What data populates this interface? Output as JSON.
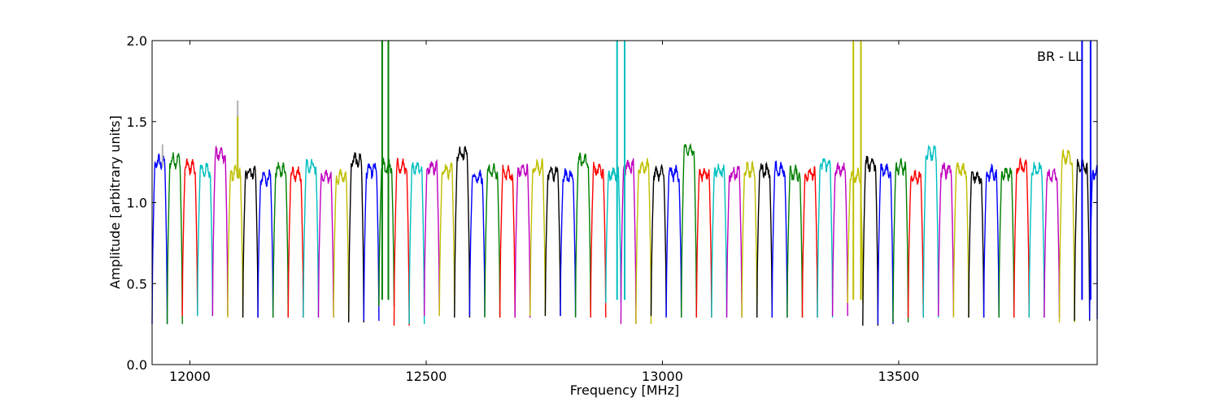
{
  "chart_data": {
    "type": "line",
    "title": "",
    "annotation": "BR - LL",
    "xlabel": "Frequency [MHz]",
    "ylabel": "Amplitude [arbitrary units]",
    "xlim": [
      11920,
      13920
    ],
    "ylim": [
      0.0,
      2.0
    ],
    "xticks": [
      12000,
      12500,
      13000,
      13500
    ],
    "xtick_labels": [
      "12000",
      "12500",
      "13000",
      "13500"
    ],
    "yticks": [
      0.0,
      0.5,
      1.0,
      1.5,
      2.0
    ],
    "ytick_labels": [
      "0.0",
      "0.5",
      "1.0",
      "1.5",
      "2.0"
    ],
    "grid": false,
    "color_cycle": [
      "#0000ff",
      "#008000",
      "#ff0000",
      "#00bfbf",
      "#bf00bf",
      "#bfbf00",
      "#000000"
    ],
    "spike_color": "#b0b0b0",
    "channel_width_mhz": 32,
    "channel_start_mhz": 11920,
    "channel_count": 63,
    "channels": [
      {
        "start": 11920,
        "color": "#0000ff",
        "level": 1.25,
        "min": 0.25
      },
      {
        "start": 11952,
        "color": "#008000",
        "level": 1.26,
        "min": 0.25
      },
      {
        "start": 11984,
        "color": "#ff0000",
        "level": 1.22,
        "min": 0.3
      },
      {
        "start": 12016,
        "color": "#00bfbf",
        "level": 1.2,
        "min": 0.3
      },
      {
        "start": 12048,
        "color": "#bf00bf",
        "level": 1.3,
        "min": 0.3
      },
      {
        "start": 12080,
        "color": "#bfbf00",
        "level": 1.18,
        "min": 0.29
      },
      {
        "start": 12112,
        "color": "#000000",
        "level": 1.19,
        "min": 0.29
      },
      {
        "start": 12144,
        "color": "#0000ff",
        "level": 1.15,
        "min": 0.29
      },
      {
        "start": 12176,
        "color": "#008000",
        "level": 1.2,
        "min": 0.29
      },
      {
        "start": 12208,
        "color": "#ff0000",
        "level": 1.18,
        "min": 0.29
      },
      {
        "start": 12240,
        "color": "#00bfbf",
        "level": 1.22,
        "min": 0.29
      },
      {
        "start": 12272,
        "color": "#bf00bf",
        "level": 1.16,
        "min": 0.29
      },
      {
        "start": 12304,
        "color": "#bfbf00",
        "level": 1.16,
        "min": 0.29
      },
      {
        "start": 12336,
        "color": "#000000",
        "level": 1.26,
        "min": 0.26
      },
      {
        "start": 12368,
        "color": "#0000ff",
        "level": 1.2,
        "min": 0.27
      },
      {
        "start": 12400,
        "color": "#008000",
        "level": 1.22,
        "min": 0.36
      },
      {
        "start": 12432,
        "color": "#ff0000",
        "level": 1.22,
        "min": 0.24
      },
      {
        "start": 12464,
        "color": "#00bfbf",
        "level": 1.22,
        "min": 0.25
      },
      {
        "start": 12496,
        "color": "#bf00bf",
        "level": 1.22,
        "min": 0.3
      },
      {
        "start": 12528,
        "color": "#bfbf00",
        "level": 1.2,
        "min": 0.3
      },
      {
        "start": 12560,
        "color": "#000000",
        "level": 1.3,
        "min": 0.29
      },
      {
        "start": 12592,
        "color": "#0000ff",
        "level": 1.16,
        "min": 0.3
      },
      {
        "start": 12624,
        "color": "#008000",
        "level": 1.19,
        "min": 0.29
      },
      {
        "start": 12656,
        "color": "#ff0000",
        "level": 1.18,
        "min": 0.29
      },
      {
        "start": 12688,
        "color": "#bf00bf",
        "level": 1.2,
        "min": 0.29
      },
      {
        "start": 12720,
        "color": "#bfbf00",
        "level": 1.22,
        "min": 0.3
      },
      {
        "start": 12752,
        "color": "#000000",
        "level": 1.18,
        "min": 0.3
      },
      {
        "start": 12784,
        "color": "#0000ff",
        "level": 1.16,
        "min": 0.3
      },
      {
        "start": 12816,
        "color": "#008000",
        "level": 1.26,
        "min": 0.29
      },
      {
        "start": 12848,
        "color": "#ff0000",
        "level": 1.2,
        "min": 0.29
      },
      {
        "start": 12880,
        "color": "#00bfbf",
        "level": 1.18,
        "min": 0.38
      },
      {
        "start": 12912,
        "color": "#bf00bf",
        "level": 1.22,
        "min": 0.25
      },
      {
        "start": 12944,
        "color": "#bfbf00",
        "level": 1.22,
        "min": 0.25
      },
      {
        "start": 12976,
        "color": "#000000",
        "level": 1.18,
        "min": 0.3
      },
      {
        "start": 13008,
        "color": "#0000ff",
        "level": 1.18,
        "min": 0.29
      },
      {
        "start": 13040,
        "color": "#008000",
        "level": 1.32,
        "min": 0.29
      },
      {
        "start": 13072,
        "color": "#ff0000",
        "level": 1.18,
        "min": 0.29
      },
      {
        "start": 13104,
        "color": "#00bfbf",
        "level": 1.2,
        "min": 0.29
      },
      {
        "start": 13136,
        "color": "#bf00bf",
        "level": 1.18,
        "min": 0.29
      },
      {
        "start": 13168,
        "color": "#bfbf00",
        "level": 1.2,
        "min": 0.29
      },
      {
        "start": 13200,
        "color": "#000000",
        "level": 1.2,
        "min": 0.29
      },
      {
        "start": 13232,
        "color": "#0000ff",
        "level": 1.2,
        "min": 0.29
      },
      {
        "start": 13264,
        "color": "#008000",
        "level": 1.18,
        "min": 0.29
      },
      {
        "start": 13296,
        "color": "#ff0000",
        "level": 1.18,
        "min": 0.29
      },
      {
        "start": 13328,
        "color": "#00bfbf",
        "level": 1.24,
        "min": 0.29
      },
      {
        "start": 13360,
        "color": "#bf00bf",
        "level": 1.2,
        "min": 0.3
      },
      {
        "start": 13392,
        "color": "#bfbf00",
        "level": 1.16,
        "min": 0.38
      },
      {
        "start": 13424,
        "color": "#000000",
        "level": 1.24,
        "min": 0.24
      },
      {
        "start": 13456,
        "color": "#0000ff",
        "level": 1.2,
        "min": 0.25
      },
      {
        "start": 13488,
        "color": "#008000",
        "level": 1.22,
        "min": 0.26
      },
      {
        "start": 13520,
        "color": "#ff0000",
        "level": 1.16,
        "min": 0.29
      },
      {
        "start": 13552,
        "color": "#00bfbf",
        "level": 1.3,
        "min": 0.29
      },
      {
        "start": 13584,
        "color": "#bf00bf",
        "level": 1.2,
        "min": 0.3
      },
      {
        "start": 13616,
        "color": "#bfbf00",
        "level": 1.2,
        "min": 0.29
      },
      {
        "start": 13648,
        "color": "#000000",
        "level": 1.16,
        "min": 0.29
      },
      {
        "start": 13680,
        "color": "#0000ff",
        "level": 1.18,
        "min": 0.29
      },
      {
        "start": 13712,
        "color": "#008000",
        "level": 1.18,
        "min": 0.29
      },
      {
        "start": 13744,
        "color": "#ff0000",
        "level": 1.22,
        "min": 0.29
      },
      {
        "start": 13776,
        "color": "#00bfbf",
        "level": 1.2,
        "min": 0.29
      },
      {
        "start": 13808,
        "color": "#bf00bf",
        "level": 1.16,
        "min": 0.29
      },
      {
        "start": 13840,
        "color": "#bfbf00",
        "level": 1.28,
        "min": 0.26
      },
      {
        "start": 13872,
        "color": "#000000",
        "level": 1.22,
        "min": 0.27
      },
      {
        "start": 13904,
        "color": "#0000ff",
        "level": 1.18,
        "min": 0.28
      }
    ],
    "spikes": [
      {
        "x": 12407,
        "low": 0.4,
        "high": 2.0,
        "color": "#008000"
      },
      {
        "x": 12420,
        "low": 0.4,
        "high": 2.0,
        "color": "#008000"
      },
      {
        "x": 12904,
        "low": 0.4,
        "high": 2.0,
        "color": "#00bfbf"
      },
      {
        "x": 12920,
        "low": 0.4,
        "high": 2.0,
        "color": "#00bfbf"
      },
      {
        "x": 13404,
        "low": 0.4,
        "high": 2.0,
        "color": "#bfbf00"
      },
      {
        "x": 13420,
        "low": 0.4,
        "high": 2.0,
        "color": "#bfbf00"
      },
      {
        "x": 13888,
        "low": 0.4,
        "high": 2.0,
        "color": "#0000ff"
      },
      {
        "x": 13906,
        "low": 0.4,
        "high": 2.0,
        "color": "#0000ff"
      },
      {
        "x": 11942,
        "low": 1.22,
        "high": 1.36,
        "color": "#b0b0b0"
      },
      {
        "x": 12101,
        "low": 1.15,
        "high": 1.63,
        "color": "#b0b0b0"
      },
      {
        "x": 12101,
        "low": 1.15,
        "high": 1.53,
        "color": "#bfbf00"
      }
    ]
  }
}
